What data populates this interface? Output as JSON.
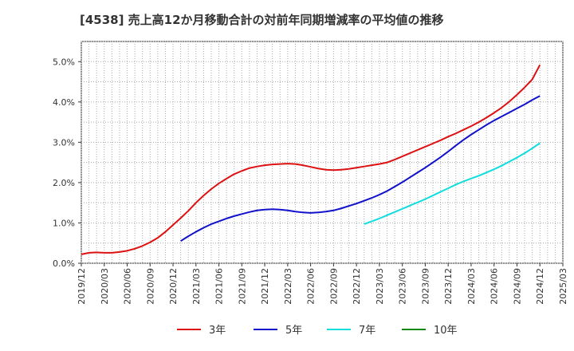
{
  "chart_data": {
    "type": "line",
    "title": "[4538]  売上高12か月移動合計の対前年同期増減率の平均値の推移",
    "xlabel": "",
    "ylabel": "",
    "x_ticks": [
      "2019/12",
      "2020/03",
      "2020/06",
      "2020/09",
      "2020/12",
      "2021/03",
      "2021/06",
      "2021/09",
      "2021/12",
      "2022/03",
      "2022/06",
      "2022/09",
      "2022/12",
      "2023/03",
      "2023/06",
      "2023/09",
      "2023/12",
      "2024/03",
      "2024/06",
      "2024/09",
      "2024/12",
      "2025/03"
    ],
    "y_ticks": [
      "0.0%",
      "1.0%",
      "2.0%",
      "3.0%",
      "4.0%",
      "5.0%"
    ],
    "ylim": [
      0,
      5.5
    ],
    "grid": true,
    "legend_position": "bottom",
    "series": [
      {
        "name": "3年",
        "color": "#dd1111",
        "x": [
          "2019/12",
          "2020/01",
          "2020/02",
          "2020/03",
          "2020/04",
          "2020/05",
          "2020/06",
          "2020/07",
          "2020/08",
          "2020/09",
          "2020/10",
          "2020/11",
          "2020/12",
          "2021/01",
          "2021/02",
          "2021/03",
          "2021/04",
          "2021/05",
          "2021/06",
          "2021/07",
          "2021/08",
          "2021/09",
          "2021/10",
          "2021/11",
          "2021/12",
          "2022/01",
          "2022/02",
          "2022/03",
          "2022/04",
          "2022/05",
          "2022/06",
          "2022/07",
          "2022/08",
          "2022/09",
          "2022/10",
          "2022/11",
          "2022/12",
          "2023/01",
          "2023/02",
          "2023/03",
          "2023/04",
          "2023/05",
          "2023/06",
          "2023/07",
          "2023/08",
          "2023/09",
          "2023/10",
          "2023/11",
          "2023/12",
          "2024/01",
          "2024/02",
          "2024/03",
          "2024/04",
          "2024/05",
          "2024/06",
          "2024/07",
          "2024/08",
          "2024/09",
          "2024/10",
          "2024/11",
          "2024/12"
        ],
        "values": [
          0.22,
          0.26,
          0.27,
          0.26,
          0.26,
          0.28,
          0.31,
          0.36,
          0.43,
          0.52,
          0.63,
          0.78,
          0.95,
          1.12,
          1.3,
          1.5,
          1.68,
          1.84,
          1.98,
          2.1,
          2.21,
          2.29,
          2.36,
          2.4,
          2.43,
          2.45,
          2.46,
          2.47,
          2.46,
          2.43,
          2.39,
          2.35,
          2.32,
          2.31,
          2.32,
          2.34,
          2.37,
          2.4,
          2.43,
          2.46,
          2.5,
          2.57,
          2.65,
          2.73,
          2.81,
          2.89,
          2.97,
          3.05,
          3.14,
          3.22,
          3.31,
          3.4,
          3.5,
          3.61,
          3.73,
          3.86,
          4.01,
          4.18,
          4.36,
          4.56,
          4.92
        ]
      },
      {
        "name": "5年",
        "color": "#1111cc",
        "x": [
          "2021/01",
          "2021/02",
          "2021/03",
          "2021/04",
          "2021/05",
          "2021/06",
          "2021/07",
          "2021/08",
          "2021/09",
          "2021/10",
          "2021/11",
          "2021/12",
          "2022/01",
          "2022/02",
          "2022/03",
          "2022/04",
          "2022/05",
          "2022/06",
          "2022/07",
          "2022/08",
          "2022/09",
          "2022/10",
          "2022/11",
          "2022/12",
          "2023/01",
          "2023/02",
          "2023/03",
          "2023/04",
          "2023/05",
          "2023/06",
          "2023/07",
          "2023/08",
          "2023/09",
          "2023/10",
          "2023/11",
          "2023/12",
          "2024/01",
          "2024/02",
          "2024/03",
          "2024/04",
          "2024/05",
          "2024/06",
          "2024/07",
          "2024/08",
          "2024/09",
          "2024/10",
          "2024/11",
          "2024/12"
        ],
        "values": [
          0.55,
          0.67,
          0.78,
          0.88,
          0.97,
          1.04,
          1.11,
          1.17,
          1.22,
          1.27,
          1.31,
          1.33,
          1.34,
          1.33,
          1.31,
          1.28,
          1.26,
          1.25,
          1.26,
          1.28,
          1.31,
          1.36,
          1.42,
          1.48,
          1.55,
          1.62,
          1.7,
          1.79,
          1.9,
          2.01,
          2.13,
          2.25,
          2.37,
          2.5,
          2.63,
          2.77,
          2.92,
          3.06,
          3.19,
          3.31,
          3.43,
          3.54,
          3.64,
          3.74,
          3.84,
          3.94,
          4.05,
          4.15
        ]
      },
      {
        "name": "7年",
        "color": "#11dddd",
        "x": [
          "2023/01",
          "2023/02",
          "2023/03",
          "2023/04",
          "2023/05",
          "2023/06",
          "2023/07",
          "2023/08",
          "2023/09",
          "2023/10",
          "2023/11",
          "2023/12",
          "2024/01",
          "2024/02",
          "2024/03",
          "2024/04",
          "2024/05",
          "2024/06",
          "2024/07",
          "2024/08",
          "2024/09",
          "2024/10",
          "2024/11",
          "2024/12"
        ],
        "values": [
          0.97,
          1.04,
          1.11,
          1.19,
          1.27,
          1.35,
          1.43,
          1.51,
          1.59,
          1.68,
          1.77,
          1.86,
          1.95,
          2.03,
          2.1,
          2.17,
          2.25,
          2.33,
          2.42,
          2.52,
          2.62,
          2.73,
          2.85,
          2.98
        ]
      },
      {
        "name": "10年",
        "color": "#118811",
        "x": [],
        "values": []
      }
    ]
  }
}
